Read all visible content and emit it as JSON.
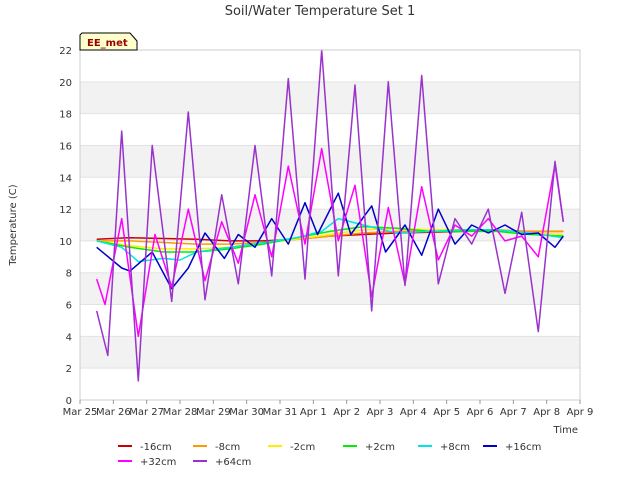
{
  "chart_data": {
    "type": "line",
    "title": "Soil/Water Temperature Set 1",
    "xlabel": "Time",
    "ylabel": "Temperature (C)",
    "ylim": [
      0,
      22
    ],
    "yticks": [
      0,
      2,
      4,
      6,
      8,
      10,
      12,
      14,
      16,
      18,
      20,
      22
    ],
    "xlim": [
      "2024-03-25",
      "2024-04-09"
    ],
    "xticks": [
      "Mar 25",
      "Mar 26",
      "Mar 27",
      "Mar 28",
      "Mar 29",
      "Mar 30",
      "Mar 31",
      "Apr 1",
      "Apr 2",
      "Apr 3",
      "Apr 4",
      "Apr 5",
      "Apr 6",
      "Apr 7",
      "Apr 8",
      "Apr 9"
    ],
    "grid": true,
    "legend_position": "bottom",
    "annotation": "EE_met",
    "series": [
      {
        "name": "-16cm",
        "color": "#cc0000",
        "x": [
          "2024-03-25 12:00",
          "2024-03-26 12:00",
          "2024-03-27 12:00",
          "2024-03-28 12:00",
          "2024-03-29 12:00",
          "2024-03-30 12:00",
          "2024-03-31 12:00",
          "2024-04-01 12:00",
          "2024-04-02 12:00",
          "2024-04-03 12:00",
          "2024-04-04 12:00",
          "2024-04-05 12:00",
          "2024-04-06 12:00",
          "2024-04-07 12:00",
          "2024-04-08 12:00"
        ],
        "y": [
          10.1,
          10.2,
          10.15,
          10.1,
          10.0,
          10.0,
          10.1,
          10.3,
          10.4,
          10.5,
          10.55,
          10.6,
          10.65,
          10.6,
          10.6
        ]
      },
      {
        "name": "-8cm",
        "color": "#ff9900",
        "x": [
          "2024-03-25 12:00",
          "2024-03-26 12:00",
          "2024-03-27 12:00",
          "2024-03-28 12:00",
          "2024-03-29 12:00",
          "2024-03-30 12:00",
          "2024-03-31 12:00",
          "2024-04-01 12:00",
          "2024-04-02 12:00",
          "2024-04-03 12:00",
          "2024-04-04 12:00",
          "2024-04-05 12:00",
          "2024-04-06 12:00",
          "2024-04-07 12:00",
          "2024-04-08 12:00"
        ],
        "y": [
          10.0,
          10.0,
          9.9,
          9.8,
          9.8,
          9.9,
          10.1,
          10.3,
          10.5,
          10.6,
          10.6,
          10.7,
          10.7,
          10.6,
          10.6
        ]
      },
      {
        "name": "-2cm",
        "color": "#ffee00",
        "x": [
          "2024-03-25 12:00",
          "2024-03-26 12:00",
          "2024-03-27 12:00",
          "2024-03-28 12:00",
          "2024-03-29 12:00",
          "2024-03-30 12:00",
          "2024-03-31 12:00",
          "2024-04-01 12:00",
          "2024-04-02 12:00",
          "2024-04-03 12:00",
          "2024-04-04 12:00",
          "2024-04-05 12:00",
          "2024-04-06 12:00",
          "2024-04-07 12:00",
          "2024-04-08 12:00"
        ],
        "y": [
          10.0,
          9.7,
          9.5,
          9.5,
          9.6,
          9.9,
          10.1,
          10.4,
          10.7,
          10.8,
          10.7,
          10.7,
          10.7,
          10.5,
          10.4
        ]
      },
      {
        "name": "+2cm",
        "color": "#00ee00",
        "x": [
          "2024-03-25 12:00",
          "2024-03-26 12:00",
          "2024-03-27 12:00",
          "2024-03-28 12:00",
          "2024-03-29 12:00",
          "2024-03-30 12:00",
          "2024-03-31 12:00",
          "2024-04-01 12:00",
          "2024-04-02 12:00",
          "2024-04-03 12:00",
          "2024-04-04 12:00",
          "2024-04-05 12:00",
          "2024-04-06 12:00",
          "2024-04-07 12:00",
          "2024-04-08 12:00"
        ],
        "y": [
          10.0,
          9.6,
          9.3,
          9.3,
          9.5,
          9.8,
          10.2,
          10.6,
          10.9,
          10.8,
          10.6,
          10.6,
          10.6,
          10.4,
          10.3
        ]
      },
      {
        "name": "+8cm",
        "color": "#00e5e5",
        "x": [
          "2024-03-25 12:00",
          "2024-03-26 06:00",
          "2024-03-26 18:00",
          "2024-03-27 12:00",
          "2024-03-28 00:00",
          "2024-03-28 12:00",
          "2024-03-29 12:00",
          "2024-03-30 12:00",
          "2024-03-31 12:00",
          "2024-04-01 06:00",
          "2024-04-01 18:00",
          "2024-04-02 12:00",
          "2024-04-03 12:00",
          "2024-04-04 12:00",
          "2024-04-05 12:00",
          "2024-04-06 12:00",
          "2024-04-07 12:00",
          "2024-04-08 12:00"
        ],
        "y": [
          10.0,
          9.6,
          8.7,
          8.9,
          8.8,
          9.3,
          9.6,
          9.9,
          10.2,
          10.6,
          11.4,
          11.0,
          10.5,
          10.6,
          10.7,
          10.7,
          10.5,
          10.2
        ]
      },
      {
        "name": "+16cm",
        "color": "#0000cc",
        "x": [
          "2024-03-25 12:00",
          "2024-03-26 06:00",
          "2024-03-26 12:00",
          "2024-03-27 04:00",
          "2024-03-27 18:00",
          "2024-03-28 06:00",
          "2024-03-28 18:00",
          "2024-03-29 08:00",
          "2024-03-29 18:00",
          "2024-03-30 06:00",
          "2024-03-30 18:00",
          "2024-03-31 06:00",
          "2024-03-31 18:00",
          "2024-04-01 03:00",
          "2024-04-01 18:00",
          "2024-04-02 03:00",
          "2024-04-02 18:00",
          "2024-04-03 04:00",
          "2024-04-03 18:00",
          "2024-04-04 06:00",
          "2024-04-04 18:00",
          "2024-04-05 06:00",
          "2024-04-05 18:00",
          "2024-04-06 06:00",
          "2024-04-06 18:00",
          "2024-04-07 06:00",
          "2024-04-07 18:00",
          "2024-04-08 06:00",
          "2024-04-08 12:00"
        ],
        "y": [
          9.6,
          8.3,
          8.1,
          9.3,
          7.0,
          8.3,
          10.5,
          8.9,
          10.4,
          9.6,
          11.4,
          9.8,
          12.4,
          10.4,
          13.0,
          10.4,
          12.2,
          9.3,
          11.0,
          9.1,
          12.0,
          9.8,
          11.0,
          10.5,
          11.0,
          10.4,
          10.5,
          9.6,
          10.3
        ]
      },
      {
        "name": "+32cm",
        "color": "#ff00ff",
        "x": [
          "2024-03-25 12:00",
          "2024-03-25 18:00",
          "2024-03-26 06:00",
          "2024-03-26 18:00",
          "2024-03-27 06:00",
          "2024-03-27 18:00",
          "2024-03-28 06:00",
          "2024-03-28 18:00",
          "2024-03-29 06:00",
          "2024-03-29 18:00",
          "2024-03-30 06:00",
          "2024-03-30 18:00",
          "2024-03-31 06:00",
          "2024-03-31 18:00",
          "2024-04-01 06:00",
          "2024-04-01 18:00",
          "2024-04-02 06:00",
          "2024-04-02 18:00",
          "2024-04-03 06:00",
          "2024-04-03 18:00",
          "2024-04-04 06:00",
          "2024-04-04 18:00",
          "2024-04-05 06:00",
          "2024-04-05 18:00",
          "2024-04-06 06:00",
          "2024-04-06 18:00",
          "2024-04-07 06:00",
          "2024-04-07 18:00",
          "2024-04-08 06:00",
          "2024-04-08 12:00"
        ],
        "y": [
          7.6,
          6.0,
          11.4,
          4.0,
          10.4,
          7.1,
          12.0,
          7.5,
          11.2,
          8.6,
          12.9,
          9.0,
          14.7,
          9.8,
          15.8,
          10.0,
          13.5,
          6.5,
          12.1,
          7.3,
          13.4,
          8.8,
          11.0,
          10.3,
          11.4,
          10.0,
          10.3,
          9.0,
          14.8,
          11.2
        ]
      },
      {
        "name": "+64cm",
        "color": "#9933cc",
        "x": [
          "2024-03-25 12:00",
          "2024-03-25 20:00",
          "2024-03-26 06:00",
          "2024-03-26 18:00",
          "2024-03-27 04:00",
          "2024-03-27 18:00",
          "2024-03-28 06:00",
          "2024-03-28 18:00",
          "2024-03-29 06:00",
          "2024-03-29 18:00",
          "2024-03-30 06:00",
          "2024-03-30 18:00",
          "2024-03-31 06:00",
          "2024-03-31 18:00",
          "2024-04-01 06:00",
          "2024-04-01 18:00",
          "2024-04-02 06:00",
          "2024-04-02 18:00",
          "2024-04-03 06:00",
          "2024-04-03 18:00",
          "2024-04-04 06:00",
          "2024-04-04 18:00",
          "2024-04-05 06:00",
          "2024-04-05 18:00",
          "2024-04-06 06:00",
          "2024-04-06 18:00",
          "2024-04-07 06:00",
          "2024-04-07 18:00",
          "2024-04-08 06:00",
          "2024-04-08 12:00"
        ],
        "y": [
          5.6,
          2.8,
          16.9,
          1.2,
          16.0,
          6.2,
          18.1,
          6.3,
          12.9,
          7.3,
          16.0,
          7.8,
          20.2,
          7.6,
          22.0,
          7.8,
          19.8,
          5.6,
          20.0,
          7.2,
          20.4,
          7.3,
          11.4,
          9.8,
          12.0,
          6.7,
          11.8,
          4.3,
          15.0,
          11.2
        ]
      }
    ]
  }
}
